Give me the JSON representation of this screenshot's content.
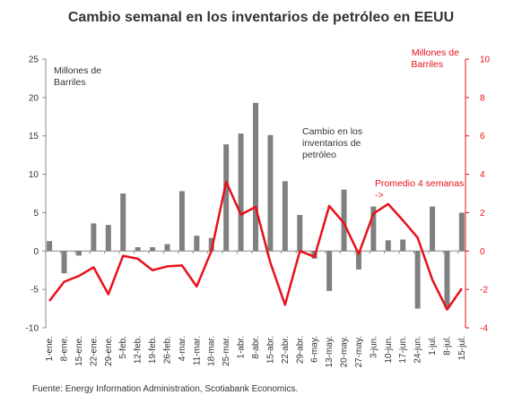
{
  "chart_data": {
    "type": "bar",
    "title": "Cambio semanal en los inventarios de petróleo en EEUU",
    "ylabel_left": [
      "Millones de",
      "Barriles"
    ],
    "ylabel_right": [
      "Millones de",
      "Barriles"
    ],
    "ylim_left": [
      -10,
      25
    ],
    "yticks_left": [
      -10,
      -5,
      0,
      5,
      10,
      15,
      20,
      25
    ],
    "ylim_right": [
      -4,
      10
    ],
    "yticks_right": [
      -4,
      -2,
      0,
      2,
      4,
      6,
      8,
      10
    ],
    "categories": [
      "1-ene.",
      "8-ene.",
      "15-ene.",
      "22-ene.",
      "29-ene.",
      "5-feb.",
      "12-feb.",
      "19-feb.",
      "26-feb.",
      "4-mar.",
      "11-mar.",
      "18-mar.",
      "25-mar.",
      "1-abr.",
      "8-abr.",
      "15-abr.",
      "22-abr.",
      "29-abr.",
      "6-may.",
      "13-may.",
      "20-may.",
      "27-may.",
      "3-jun.",
      "10-jun.",
      "17-jun.",
      "24-jun.",
      "1-jul.",
      "8-jul.",
      "15-jul."
    ],
    "x": [
      "1-ene.",
      "",
      "8-ene.",
      "",
      "15-ene.",
      "",
      "22-ene.",
      "",
      "29-ene.",
      "",
      "5-feb.",
      "",
      "12-feb.",
      "",
      "19-feb.",
      "",
      "26-feb.",
      "",
      "4-mar.",
      "",
      "11-mar.",
      "",
      "18-mar.",
      "",
      "25-mar.",
      "",
      "1-abr.",
      "",
      "8-abr.",
      "",
      "15-abr.",
      "",
      "22-abr.",
      "",
      "29-abr.",
      "",
      "6-may.",
      "",
      "13-may.",
      "",
      "20-may.",
      "",
      "27-may.",
      "",
      "3-jun.",
      "",
      "10-jun.",
      "",
      "17-jun.",
      "",
      "24-jun.",
      "",
      "1-jul.",
      "",
      "8-jul.",
      "",
      "15-jul."
    ],
    "series": [
      {
        "name": "Cambio en los inventarios de petróleo",
        "kind": "bar",
        "axis": "left",
        "color": "#808080",
        "values": [
          1.3,
          null,
          -2.9,
          null,
          -0.6,
          null,
          3.6,
          null,
          3.4,
          null,
          7.5,
          null,
          0.5,
          null,
          0.5,
          null,
          0.9,
          null,
          7.8,
          null,
          2.0,
          null,
          1.7,
          null,
          13.9,
          null,
          15.3,
          null,
          19.3,
          null,
          15.1,
          null,
          9.1,
          null,
          4.7,
          null,
          -1.0,
          null,
          -5.2,
          null,
          8.0,
          null,
          -2.4,
          null,
          5.8,
          null,
          1.4,
          null,
          1.5,
          null,
          -7.5,
          null,
          5.8,
          null,
          -7.3,
          null,
          5.0
        ]
      },
      {
        "name": "Promedio 4 semanas",
        "kind": "line",
        "axis": "right",
        "color": "#e8101a",
        "values": [
          -2.6,
          null,
          -1.6,
          null,
          -1.3,
          null,
          -0.85,
          null,
          -2.25,
          null,
          -0.25,
          null,
          -0.4,
          null,
          -1.0,
          null,
          -0.8,
          null,
          -0.75,
          null,
          -1.85,
          null,
          0.0,
          null,
          3.6,
          null,
          1.9,
          null,
          2.3,
          null,
          -0.6,
          null,
          -2.8,
          null,
          0.0,
          null,
          -0.3,
          null,
          2.35,
          null,
          1.45,
          null,
          -0.15,
          null,
          1.95,
          null,
          2.45,
          null,
          1.6,
          null,
          0.7,
          null,
          -1.5,
          null,
          -3.05,
          null,
          -1.95
        ]
      }
    ],
    "annotations": [
      {
        "text": [
          "Cambio en los",
          "inventarios de",
          "petróleo"
        ],
        "color": "#333333"
      },
      {
        "text": [
          "Promedio 4 semanas",
          "->"
        ],
        "color": "#e8101a"
      }
    ],
    "source": "Fuente: Energy Information Administration, Scotiabank Economics.",
    "grid": false
  }
}
